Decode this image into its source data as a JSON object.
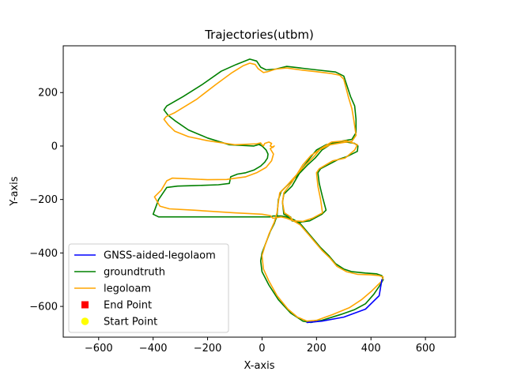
{
  "chart_data": {
    "type": "line",
    "title": "Trajectories(utbm)",
    "xlabel": "X-axis",
    "ylabel": "Y-axis",
    "xlim": [
      -730,
      710
    ],
    "ylim": [
      -715,
      375
    ],
    "xticks": [
      -600,
      -400,
      -200,
      0,
      200,
      400,
      600
    ],
    "yticks": [
      -600,
      -400,
      -200,
      0,
      200
    ],
    "xtick_labels": [
      "−600",
      "−400",
      "−200",
      "0",
      "200",
      "400",
      "600"
    ],
    "ytick_labels": [
      "−600",
      "−400",
      "−200",
      "0",
      "200"
    ],
    "grid": false,
    "legend_position": "lower-left",
    "series": [
      {
        "name": "GNSS-aided-legolaom",
        "color": "#0000ff",
        "marker": "line",
        "points": [
          [
            440,
            -500
          ],
          [
            430,
            -560
          ],
          [
            380,
            -610
          ],
          [
            300,
            -640
          ],
          [
            220,
            -655
          ],
          [
            165,
            -660
          ]
        ]
      },
      {
        "name": "groundtruth",
        "color": "#008000",
        "marker": "line",
        "points": [
          [
            0,
            0
          ],
          [
            -10,
            5
          ],
          [
            -5,
            10
          ],
          [
            -15,
            5
          ],
          [
            -30,
            0
          ],
          [
            -120,
            5
          ],
          [
            -200,
            30
          ],
          [
            -270,
            60
          ],
          [
            -320,
            95
          ],
          [
            -345,
            115
          ],
          [
            -360,
            135
          ],
          [
            -350,
            150
          ],
          [
            -290,
            185
          ],
          [
            -220,
            230
          ],
          [
            -150,
            280
          ],
          [
            -95,
            305
          ],
          [
            -45,
            325
          ],
          [
            -20,
            318
          ],
          [
            -5,
            295
          ],
          [
            15,
            285
          ],
          [
            50,
            288
          ],
          [
            90,
            298
          ],
          [
            140,
            292
          ],
          [
            200,
            285
          ],
          [
            270,
            277
          ],
          [
            300,
            262
          ],
          [
            325,
            185
          ],
          [
            340,
            150
          ],
          [
            345,
            100
          ],
          [
            345,
            50
          ],
          [
            330,
            25
          ],
          [
            300,
            20
          ],
          [
            280,
            15
          ],
          [
            235,
            5
          ],
          [
            200,
            -15
          ],
          [
            180,
            -40
          ],
          [
            150,
            -80
          ],
          [
            110,
            -150
          ],
          [
            80,
            -180
          ],
          [
            75,
            -210
          ],
          [
            80,
            -255
          ],
          [
            95,
            -262
          ],
          [
            105,
            -265
          ],
          [
            110,
            -280
          ],
          [
            140,
            -285
          ],
          [
            175,
            -280
          ],
          [
            220,
            -255
          ],
          [
            235,
            -240
          ],
          [
            222,
            -190
          ],
          [
            210,
            -140
          ],
          [
            205,
            -100
          ],
          [
            215,
            -85
          ],
          [
            280,
            -50
          ],
          [
            310,
            -40
          ],
          [
            350,
            -20
          ],
          [
            352,
            0
          ],
          [
            340,
            10
          ],
          [
            310,
            15
          ],
          [
            260,
            12
          ],
          [
            220,
            -15
          ],
          [
            195,
            -45
          ],
          [
            168,
            -70
          ],
          [
            130,
            -110
          ],
          [
            90,
            -150
          ],
          [
            70,
            -170
          ],
          [
            60,
            -200
          ],
          [
            55,
            -260
          ],
          [
            45,
            -290
          ],
          [
            30,
            -320
          ],
          [
            15,
            -360
          ],
          [
            0,
            -400
          ],
          [
            -5,
            -430
          ],
          [
            0,
            -470
          ],
          [
            25,
            -520
          ],
          [
            60,
            -575
          ],
          [
            105,
            -625
          ],
          [
            150,
            -655
          ],
          [
            180,
            -660
          ],
          [
            220,
            -652
          ],
          [
            290,
            -630
          ],
          [
            340,
            -612
          ],
          [
            380,
            -590
          ],
          [
            410,
            -555
          ],
          [
            430,
            -525
          ],
          [
            445,
            -500
          ],
          [
            440,
            -485
          ],
          [
            420,
            -478
          ],
          [
            380,
            -475
          ],
          [
            330,
            -470
          ],
          [
            300,
            -460
          ],
          [
            270,
            -440
          ],
          [
            245,
            -410
          ],
          [
            215,
            -380
          ],
          [
            190,
            -350
          ],
          [
            165,
            -320
          ],
          [
            140,
            -290
          ],
          [
            115,
            -275
          ],
          [
            90,
            -265
          ],
          [
            70,
            -262
          ],
          [
            40,
            -262
          ],
          [
            30,
            -265
          ],
          [
            -100,
            -265
          ],
          [
            -250,
            -265
          ],
          [
            -380,
            -265
          ],
          [
            -400,
            -255
          ],
          [
            -380,
            -200
          ],
          [
            -350,
            -155
          ],
          [
            -310,
            -150
          ],
          [
            -250,
            -148
          ],
          [
            -160,
            -145
          ],
          [
            -120,
            -140
          ],
          [
            -115,
            -115
          ],
          [
            -90,
            -105
          ],
          [
            -60,
            -100
          ],
          [
            -30,
            -90
          ],
          [
            -5,
            -75
          ],
          [
            10,
            -60
          ],
          [
            20,
            -45
          ],
          [
            22,
            -30
          ],
          [
            15,
            -15
          ],
          [
            5,
            -5
          ],
          [
            0,
            0
          ]
        ]
      },
      {
        "name": "legoloam",
        "color": "#ffa500",
        "marker": "line",
        "points": [
          [
            40,
            -5
          ],
          [
            30,
            0
          ],
          [
            35,
            10
          ],
          [
            25,
            15
          ],
          [
            10,
            10
          ],
          [
            5,
            0
          ],
          [
            0,
            5
          ],
          [
            -5,
            12
          ],
          [
            -20,
            8
          ],
          [
            -100,
            5
          ],
          [
            -200,
            20
          ],
          [
            -270,
            35
          ],
          [
            -320,
            55
          ],
          [
            -345,
            80
          ],
          [
            -360,
            100
          ],
          [
            -352,
            110
          ],
          [
            -320,
            125
          ],
          [
            -240,
            175
          ],
          [
            -170,
            230
          ],
          [
            -110,
            275
          ],
          [
            -70,
            300
          ],
          [
            -45,
            310
          ],
          [
            -25,
            305
          ],
          [
            -15,
            290
          ],
          [
            5,
            275
          ],
          [
            20,
            278
          ],
          [
            50,
            288
          ],
          [
            90,
            292
          ],
          [
            140,
            285
          ],
          [
            200,
            278
          ],
          [
            250,
            272
          ],
          [
            285,
            265
          ],
          [
            300,
            250
          ],
          [
            318,
            180
          ],
          [
            330,
            140
          ],
          [
            338,
            90
          ],
          [
            345,
            40
          ],
          [
            330,
            18
          ],
          [
            290,
            12
          ],
          [
            250,
            5
          ],
          [
            210,
            -15
          ],
          [
            180,
            -35
          ],
          [
            150,
            -70
          ],
          [
            110,
            -135
          ],
          [
            80,
            -175
          ],
          [
            75,
            -210
          ],
          [
            82,
            -250
          ],
          [
            100,
            -262
          ],
          [
            115,
            -280
          ],
          [
            150,
            -282
          ],
          [
            185,
            -270
          ],
          [
            222,
            -250
          ],
          [
            215,
            -200
          ],
          [
            205,
            -150
          ],
          [
            200,
            -100
          ],
          [
            210,
            -85
          ],
          [
            260,
            -55
          ],
          [
            305,
            -45
          ],
          [
            340,
            -15
          ],
          [
            350,
            5
          ],
          [
            310,
            20
          ],
          [
            255,
            15
          ],
          [
            215,
            -10
          ],
          [
            190,
            -40
          ],
          [
            160,
            -70
          ],
          [
            120,
            -115
          ],
          [
            85,
            -155
          ],
          [
            65,
            -175
          ],
          [
            60,
            -210
          ],
          [
            55,
            -250
          ],
          [
            45,
            -285
          ],
          [
            25,
            -330
          ],
          [
            10,
            -375
          ],
          [
            0,
            -410
          ],
          [
            5,
            -460
          ],
          [
            25,
            -505
          ],
          [
            55,
            -560
          ],
          [
            95,
            -610
          ],
          [
            130,
            -640
          ],
          [
            165,
            -655
          ],
          [
            200,
            -652
          ],
          [
            260,
            -630
          ],
          [
            320,
            -605
          ],
          [
            365,
            -575
          ],
          [
            400,
            -545
          ],
          [
            425,
            -520
          ],
          [
            440,
            -505
          ],
          [
            445,
            -490
          ],
          [
            430,
            -485
          ],
          [
            400,
            -482
          ],
          [
            350,
            -480
          ],
          [
            310,
            -470
          ],
          [
            275,
            -450
          ],
          [
            250,
            -420
          ],
          [
            220,
            -390
          ],
          [
            195,
            -360
          ],
          [
            170,
            -330
          ],
          [
            140,
            -295
          ],
          [
            115,
            -280
          ],
          [
            90,
            -270
          ],
          [
            70,
            -265
          ],
          [
            40,
            -270
          ],
          [
            30,
            -260
          ],
          [
            0,
            -255
          ],
          [
            -100,
            -250
          ],
          [
            -250,
            -240
          ],
          [
            -340,
            -235
          ],
          [
            -375,
            -225
          ],
          [
            -395,
            -190
          ],
          [
            -370,
            -165
          ],
          [
            -350,
            -130
          ],
          [
            -330,
            -120
          ],
          [
            -280,
            -122
          ],
          [
            -200,
            -126
          ],
          [
            -130,
            -125
          ],
          [
            -95,
            -120
          ],
          [
            -60,
            -115
          ],
          [
            -20,
            -100
          ],
          [
            15,
            -80
          ],
          [
            35,
            -55
          ],
          [
            42,
            -30
          ],
          [
            30,
            -10
          ],
          [
            45,
            0
          ],
          [
            40,
            -5
          ]
        ]
      },
      {
        "name": "End Point",
        "color": "#ff0000",
        "marker": "square",
        "points": []
      },
      {
        "name": "Start Point",
        "color": "#ffff00",
        "marker": "circle",
        "points": []
      }
    ]
  }
}
